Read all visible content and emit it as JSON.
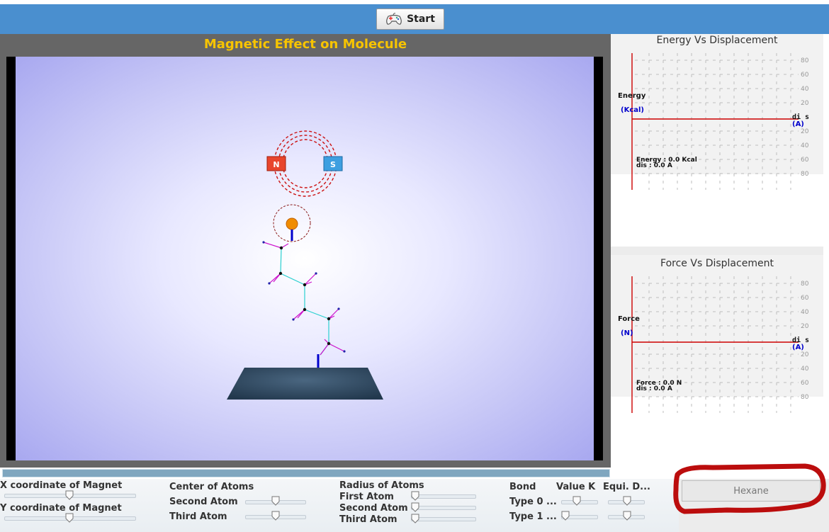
{
  "toolbar": {
    "start_label": "Start",
    "start_icon": "gamepad-icon"
  },
  "simulation": {
    "title": "Magnetic Effect on Molecule",
    "magnet_north_label": "N",
    "magnet_south_label": "S"
  },
  "energy_graph": {
    "title": "Energy Vs Displacement",
    "y_label": "Energy",
    "y_unit": "(Kcal)",
    "x_label": "di s",
    "x_unit": "(A)",
    "readout_value": "Energy : 0.0 Kcal",
    "readout_dis": "dis : 0.0 A",
    "ticks": [
      "80",
      "60",
      "40",
      "20",
      "20",
      "40",
      "60",
      "80"
    ]
  },
  "force_graph": {
    "title": "Force Vs Displacement",
    "y_label": "Force",
    "y_unit": "(N)",
    "x_label": "di s",
    "x_unit": "(A)",
    "readout_value": "Force : 0.0 N",
    "readout_dis": "dis : 0.0 A",
    "ticks": [
      "80",
      "60",
      "40",
      "20",
      "20",
      "40",
      "60",
      "80"
    ]
  },
  "controls": {
    "x_magnet": "X coordinate of Magnet",
    "y_magnet": "Y coordinate of Magnet",
    "center_atoms": "Center of Atoms",
    "second_atom_center": "Second Atom",
    "third_atom_center": "Third Atom",
    "radius_atoms": "Radius of Atoms",
    "first_atom_radius": "First Atom",
    "second_atom_radius": "Second Atom",
    "third_atom_radius": "Third Atom",
    "bond": "Bond",
    "value_k": "Value K",
    "equi_d": "Equi. D...",
    "type0": "Type 0 ...",
    "type1": "Type 1 ..."
  },
  "molecule_button": {
    "label": "Hexane"
  }
}
